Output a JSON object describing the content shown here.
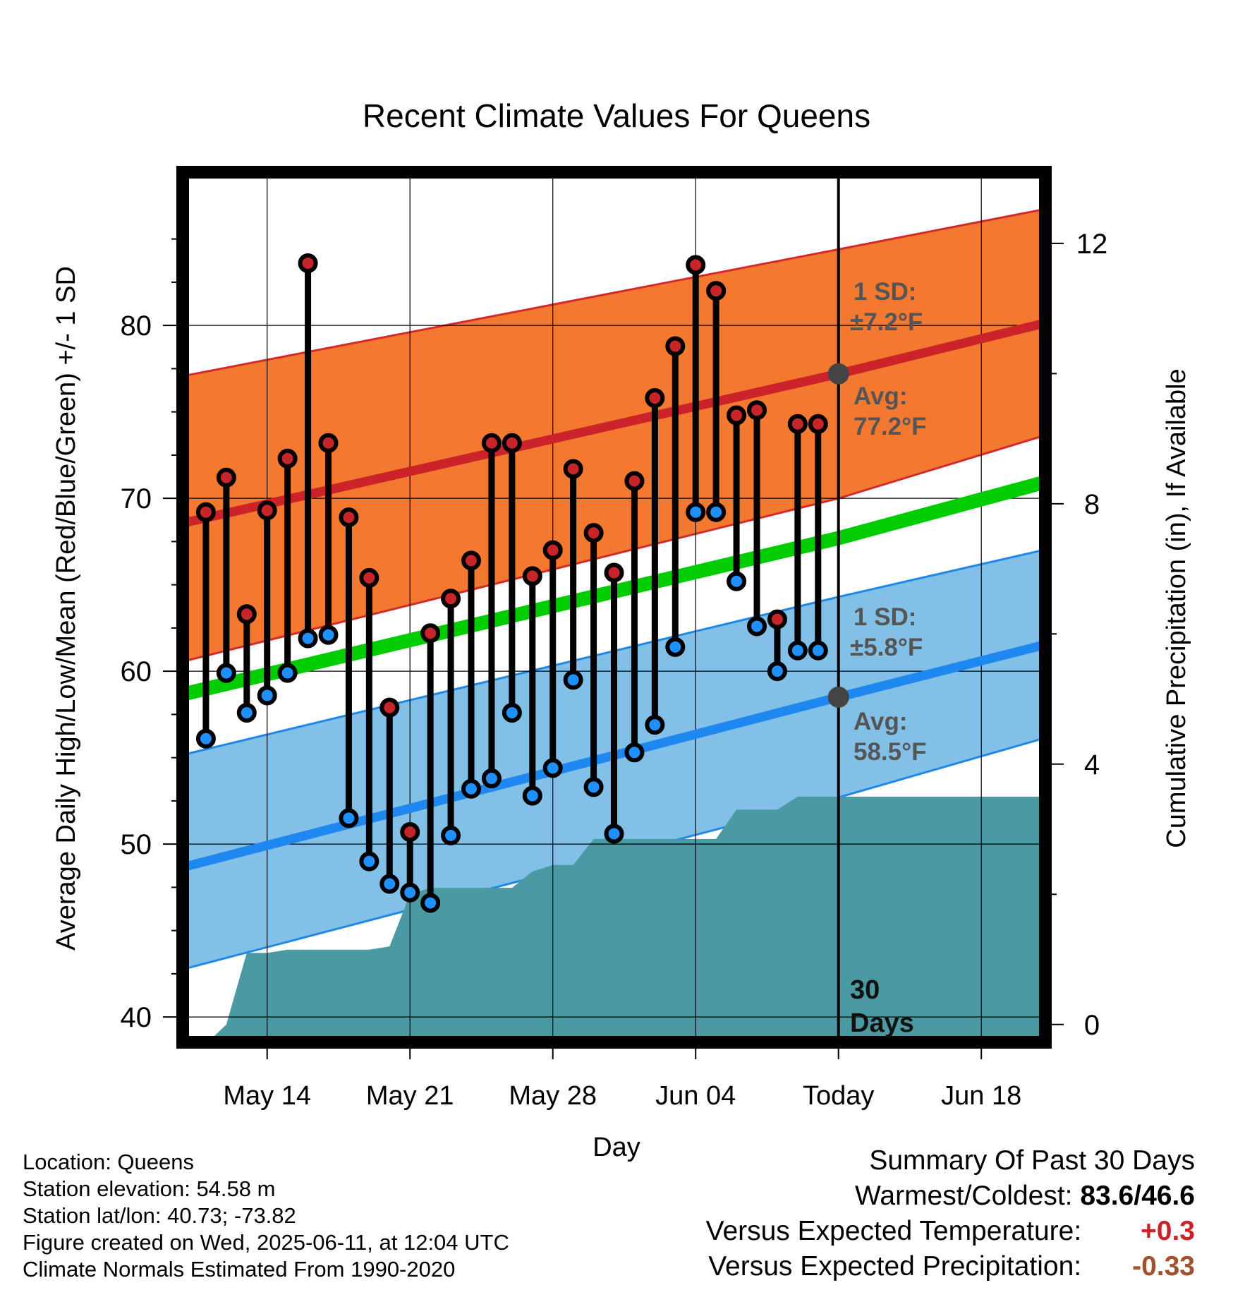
{
  "chart_data": {
    "type": "line",
    "title": "Recent Climate Values For Queens",
    "xlabel": "Day",
    "ylabel": "Average Daily High/Low/Mean (Red/Blue/Green) +/- 1 SD",
    "y2label": "Cumulative Precipitation (in), If Available",
    "ylim": [
      38.7,
      88.7
    ],
    "y2lim": [
      -0.23,
      13.05
    ],
    "xlim": [
      "2025-05-10",
      "2025-06-21"
    ],
    "x_ticks": [
      "May 14",
      "May 21",
      "May 28",
      "Jun 04",
      "Today",
      "Jun 18"
    ],
    "y_ticks": [
      40,
      50,
      60,
      70,
      80
    ],
    "y2_ticks": [
      0,
      4,
      8,
      12
    ],
    "grid": true,
    "today": "2025-06-11",
    "normals": {
      "dates": [
        "2025-05-10",
        "2025-06-11",
        "2025-06-21"
      ],
      "high_avg": [
        68.6,
        77.2,
        80.1
      ],
      "high_band_upper": [
        77.1,
        84.4,
        86.7
      ],
      "high_band_lower": [
        60.6,
        70.0,
        73.6
      ],
      "low_avg": [
        48.7,
        58.5,
        61.5
      ],
      "low_band_upper": [
        55.2,
        64.3,
        67.0
      ],
      "low_band_lower": [
        42.8,
        52.7,
        56.1
      ],
      "mean": [
        58.7,
        67.7,
        70.9
      ]
    },
    "series": [
      {
        "name": "High",
        "color": "#c8252a",
        "dates": [
          "2025-05-11",
          "2025-05-12",
          "2025-05-13",
          "2025-05-14",
          "2025-05-15",
          "2025-05-16",
          "2025-05-17",
          "2025-05-18",
          "2025-05-19",
          "2025-05-20",
          "2025-05-21",
          "2025-05-22",
          "2025-05-23",
          "2025-05-24",
          "2025-05-25",
          "2025-05-26",
          "2025-05-27",
          "2025-05-28",
          "2025-05-29",
          "2025-05-30",
          "2025-05-31",
          "2025-06-01",
          "2025-06-02",
          "2025-06-03",
          "2025-06-04",
          "2025-06-05",
          "2025-06-06",
          "2025-06-07",
          "2025-06-08",
          "2025-06-09",
          "2025-06-10"
        ],
        "values": [
          69.2,
          71.2,
          63.3,
          69.3,
          72.3,
          83.6,
          73.2,
          68.9,
          65.4,
          57.9,
          50.7,
          62.2,
          64.2,
          66.4,
          73.2,
          73.2,
          65.5,
          67.0,
          71.7,
          68.0,
          65.7,
          71.0,
          75.8,
          78.8,
          83.5,
          82.0,
          74.8,
          75.1,
          63.0,
          74.3,
          74.3
        ]
      },
      {
        "name": "Low",
        "color": "#1e90ff",
        "dates": [
          "2025-05-11",
          "2025-05-12",
          "2025-05-13",
          "2025-05-14",
          "2025-05-15",
          "2025-05-16",
          "2025-05-17",
          "2025-05-18",
          "2025-05-19",
          "2025-05-20",
          "2025-05-21",
          "2025-05-22",
          "2025-05-23",
          "2025-05-24",
          "2025-05-25",
          "2025-05-26",
          "2025-05-27",
          "2025-05-28",
          "2025-05-29",
          "2025-05-30",
          "2025-05-31",
          "2025-06-01",
          "2025-06-02",
          "2025-06-03",
          "2025-06-04",
          "2025-06-05",
          "2025-06-06",
          "2025-06-07",
          "2025-06-08",
          "2025-06-09",
          "2025-06-10"
        ],
        "values": [
          56.1,
          59.9,
          57.6,
          58.6,
          59.9,
          61.9,
          62.1,
          51.5,
          49.0,
          47.7,
          47.2,
          46.6,
          50.5,
          53.2,
          53.8,
          57.6,
          52.8,
          54.4,
          59.5,
          53.3,
          50.6,
          55.3,
          56.9,
          61.4,
          69.2,
          69.2,
          65.2,
          62.6,
          60.0,
          61.2,
          61.2
        ]
      },
      {
        "name": "Cumulative Precipitation",
        "color": "#4a9aa4",
        "dates": [
          "2025-05-11",
          "2025-05-12",
          "2025-05-13",
          "2025-05-14",
          "2025-05-15",
          "2025-05-16",
          "2025-05-17",
          "2025-05-18",
          "2025-05-19",
          "2025-05-20",
          "2025-05-21",
          "2025-05-22",
          "2025-05-23",
          "2025-05-24",
          "2025-05-25",
          "2025-05-26",
          "2025-05-27",
          "2025-05-28",
          "2025-05-29",
          "2025-05-30",
          "2025-05-31",
          "2025-06-01",
          "2025-06-02",
          "2025-06-03",
          "2025-06-04",
          "2025-06-05",
          "2025-06-06",
          "2025-06-07",
          "2025-06-08",
          "2025-06-09",
          "2025-06-10",
          "2025-06-21"
        ],
        "values": [
          -0.3,
          0.0,
          1.1,
          1.1,
          1.15,
          1.15,
          1.15,
          1.15,
          1.15,
          1.2,
          2.0,
          2.1,
          2.1,
          2.1,
          2.1,
          2.1,
          2.35,
          2.45,
          2.45,
          2.85,
          2.85,
          2.85,
          2.85,
          2.85,
          2.85,
          2.85,
          3.3,
          3.3,
          3.3,
          3.5,
          3.5,
          3.5
        ]
      }
    ],
    "annotations": {
      "high_sd_label": "1 SD:",
      "high_sd_value": "±7.2°F",
      "high_avg_label": "Avg:",
      "high_avg_value": "77.2°F",
      "low_sd_label": "1 SD:",
      "low_sd_value": "±5.8°F",
      "low_avg_label": "Avg:",
      "low_avg_value": "58.5°F",
      "days_line1": "30",
      "days_line2": "Days"
    },
    "colors": {
      "high_band": "#f47930",
      "high_band_edge": "#d42a2a",
      "high_avg_line": "#cc2229",
      "low_band": "#82c0e8",
      "low_band_edge": "#1e88e8",
      "low_avg_line": "#1e88f0",
      "mean_line": "#00cc00",
      "precip_fill": "#4a9aa4",
      "annotation_text": "#555555"
    }
  },
  "footer": {
    "location": "Location: Queens",
    "elevation": "Station elevation: 54.58 m",
    "latlon": "Station lat/lon: 40.73; -73.82",
    "created": "Figure created on Wed, 2025-06-11, at 12:04 UTC",
    "normals": "Climate Normals Estimated From 1990-2020"
  },
  "summary": {
    "title": "Summary Of Past 30 Days",
    "warmest_label": "Warmest/Coldest:",
    "warmest_value": "83.6/46.6",
    "temp_label": "Versus Expected Temperature:",
    "temp_value": "+0.3",
    "temp_color": "#cc2229",
    "precip_label": "Versus Expected Precipitation:",
    "precip_value": "-0.33",
    "precip_color": "#a0522d"
  }
}
